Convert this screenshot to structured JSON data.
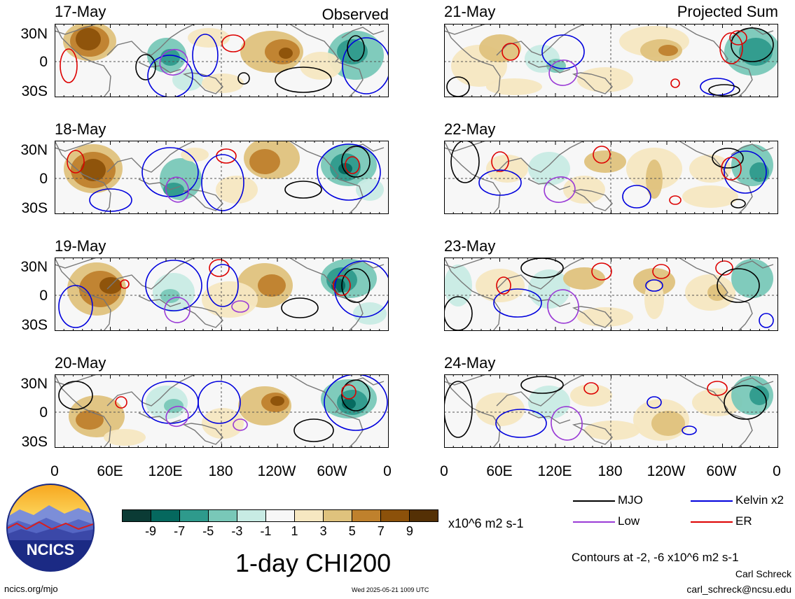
{
  "sections": {
    "left": "Observed",
    "right": "Projected Sum"
  },
  "panels": [
    {
      "day": "17-May",
      "column": "left"
    },
    {
      "day": "18-May",
      "column": "left"
    },
    {
      "day": "19-May",
      "column": "left"
    },
    {
      "day": "20-May",
      "column": "left"
    },
    {
      "day": "21-May",
      "column": "right"
    },
    {
      "day": "22-May",
      "column": "right"
    },
    {
      "day": "23-May",
      "column": "right"
    },
    {
      "day": "24-May",
      "column": "right"
    }
  ],
  "lat_labels": [
    "30N",
    "0",
    "30S"
  ],
  "lon_labels": [
    "0",
    "60E",
    "120E",
    "180",
    "120W",
    "60W",
    "0"
  ],
  "colorbar": {
    "colors": [
      "#0b3b35",
      "#05685e",
      "#2e9a8c",
      "#79c8b8",
      "#c8ebe4",
      "#f7f7f7",
      "#f6e7c1",
      "#dfc27d",
      "#bf812d",
      "#8c510a",
      "#543005"
    ],
    "labels": [
      "-9",
      "-7",
      "-5",
      "-3",
      "-1",
      "1",
      "3",
      "5",
      "7",
      "9"
    ],
    "units": "x10^6 m2 s-1"
  },
  "title": "1-day CHI200",
  "legend": [
    {
      "label": "MJO",
      "color": "#000000"
    },
    {
      "label": "Kelvin x2",
      "color": "#0000dd"
    },
    {
      "label": "Low",
      "color": "#9a3bd6"
    },
    {
      "label": "ER",
      "color": "#dd0000"
    }
  ],
  "contours_note": "Contours at -2, -6 x10^6 m2 s-1",
  "logo_text": "NCICS",
  "url": "ncics.org/mjo",
  "timestamp": "Wed 2025-05-21 1009 UTC",
  "author": "Carl Schreck",
  "email": "carl_schreck@ncsu.edu"
}
